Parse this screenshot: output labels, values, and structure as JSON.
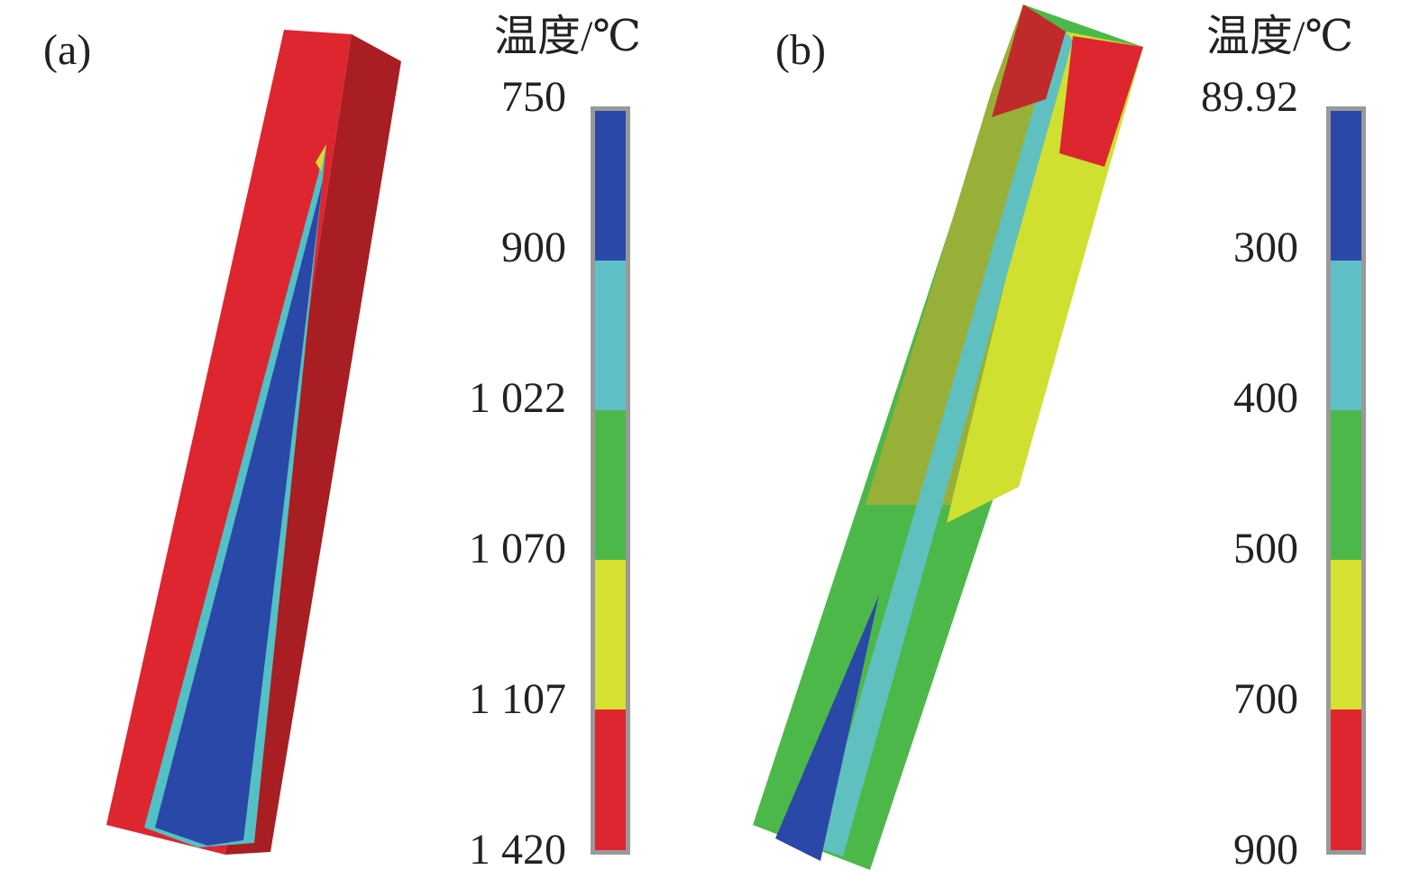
{
  "panels": [
    {
      "label": "(a)",
      "legend": {
        "title": "温度/℃",
        "labels": [
          "750",
          "900",
          "1 022",
          "1 070",
          "1 107",
          "1 420"
        ]
      }
    },
    {
      "label": "(b)",
      "legend": {
        "title": "温度/℃",
        "labels": [
          "89.92",
          "300",
          "400",
          "500",
          "700",
          "900"
        ]
      }
    }
  ]
}
